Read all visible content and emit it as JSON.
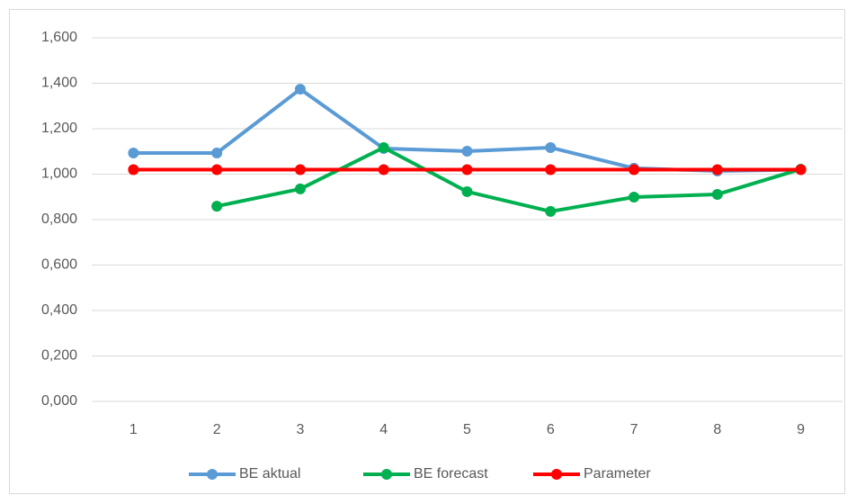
{
  "chart_data": {
    "type": "line",
    "categories": [
      "1",
      "2",
      "3",
      "4",
      "5",
      "6",
      "7",
      "8",
      "9"
    ],
    "series": [
      {
        "name": "BE aktual",
        "color": "#5b9bd5",
        "values": [
          1.093,
          1.093,
          1.374,
          1.113,
          1.101,
          1.117,
          1.026,
          1.014,
          1.02
        ]
      },
      {
        "name": "BE forecast",
        "color": "#00b050",
        "values": [
          null,
          0.859,
          0.935,
          1.117,
          0.923,
          0.836,
          0.899,
          0.911,
          1.022
        ]
      },
      {
        "name": "Parameter",
        "color": "#ff0000",
        "values": [
          1.02,
          1.02,
          1.02,
          1.02,
          1.02,
          1.02,
          1.02,
          1.02,
          1.02
        ]
      }
    ],
    "ylim": [
      0,
      1.6
    ],
    "yticks": [
      {
        "value": 0,
        "label": "0,000"
      },
      {
        "value": 0.2,
        "label": "0,200"
      },
      {
        "value": 0.4,
        "label": "0,400"
      },
      {
        "value": 0.6,
        "label": "0,600"
      },
      {
        "value": 0.8,
        "label": "0,800"
      },
      {
        "value": 1.0,
        "label": "1,000"
      },
      {
        "value": 1.2,
        "label": "1,200"
      },
      {
        "value": 1.4,
        "label": "1,400"
      },
      {
        "value": 1.6,
        "label": "1,600"
      }
    ],
    "grid": true,
    "legend": "bottom"
  }
}
